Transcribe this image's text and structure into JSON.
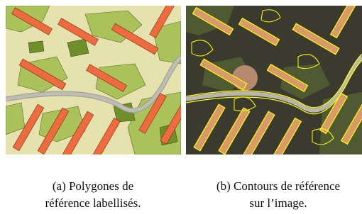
{
  "panels": [
    {
      "caption": [
        "(a) Polygones de",
        "référence labellisés."
      ]
    },
    {
      "caption": [
        "(b) Contours de référence",
        "sur l’image."
      ]
    }
  ]
}
